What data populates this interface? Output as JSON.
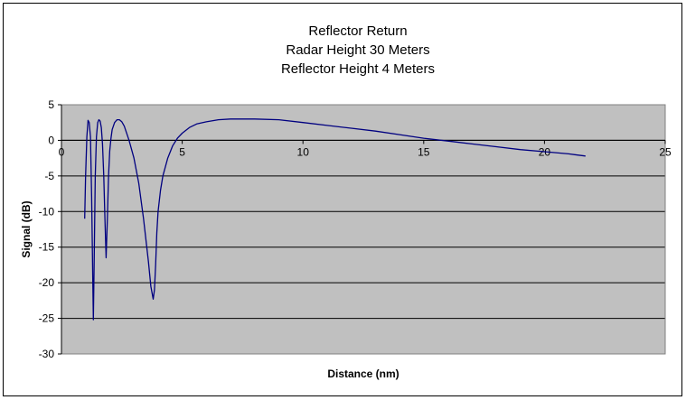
{
  "chart_data": {
    "type": "line",
    "title": [
      "Reflector Return",
      "Radar Height 30 Meters",
      "Reflector Height 4 Meters"
    ],
    "xlabel": "Distance  (nm)",
    "ylabel": "Signal (dB)",
    "xlim": [
      0,
      25
    ],
    "ylim": [
      -30,
      5
    ],
    "xticks": [
      0,
      5,
      10,
      15,
      20,
      25
    ],
    "yticks": [
      5,
      0,
      -5,
      -10,
      -15,
      -20,
      -25,
      -30
    ],
    "xtick_labels": [
      "0",
      "5",
      "10",
      "15",
      "20",
      "25"
    ],
    "ytick_labels": [
      "5",
      "0",
      "-5",
      "-10",
      "-15",
      "-20",
      "-25",
      "-30"
    ],
    "grid": "horizontal",
    "legend": "none",
    "series": [
      {
        "x": [
          0.96,
          1.0,
          1.05,
          1.1,
          1.15,
          1.2,
          1.25,
          1.3,
          1.32,
          1.35,
          1.4,
          1.45,
          1.5,
          1.55,
          1.6,
          1.65,
          1.7,
          1.75,
          1.8,
          1.85,
          1.9,
          1.95,
          2.0,
          2.05,
          2.1,
          2.2,
          2.3,
          2.4,
          2.5,
          2.6,
          2.8,
          3.0,
          3.2,
          3.4,
          3.6,
          3.7,
          3.8,
          3.85,
          3.9,
          3.95,
          4.0,
          4.1,
          4.2,
          4.4,
          4.6,
          4.8,
          5.0,
          5.3,
          5.6,
          6.0,
          6.5,
          7.0,
          7.5,
          8.0,
          9.0,
          10.0,
          11.0,
          12.0,
          13.0,
          14.0,
          15.0,
          16.0,
          17.0,
          18.0,
          19.0,
          20.0,
          21.0,
          21.7
        ],
        "values": [
          -11.0,
          -5.0,
          0.5,
          2.8,
          2.5,
          0.5,
          -8.0,
          -20.0,
          -25.2,
          -18.0,
          -5.0,
          0.5,
          2.5,
          2.9,
          2.7,
          1.8,
          -0.5,
          -5.0,
          -11.0,
          -16.5,
          -11.0,
          -5.0,
          -1.5,
          0.3,
          1.5,
          2.5,
          2.9,
          2.9,
          2.6,
          2.0,
          0.0,
          -2.5,
          -6.0,
          -11.0,
          -17.0,
          -20.5,
          -22.3,
          -21.0,
          -17.5,
          -13.0,
          -10.0,
          -7.0,
          -5.0,
          -2.5,
          -0.8,
          0.3,
          1.0,
          1.8,
          2.3,
          2.6,
          2.9,
          3.0,
          3.0,
          3.0,
          2.9,
          2.5,
          2.1,
          1.7,
          1.3,
          0.8,
          0.3,
          -0.1,
          -0.5,
          -0.9,
          -1.3,
          -1.6,
          -1.9,
          -2.2
        ],
        "color": "#000080"
      }
    ],
    "colors": {
      "plot_area": "#c0c0c0",
      "chart_background": "#ffffff",
      "gridline": "#000000",
      "line": "#000080",
      "text": "#000000"
    }
  }
}
